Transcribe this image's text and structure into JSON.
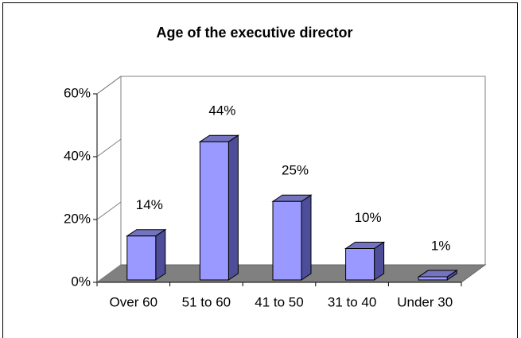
{
  "chart_data": {
    "type": "bar3d",
    "title": "Age of the executive director",
    "categories": [
      "Over 60",
      "51 to 60",
      "41 to 50",
      "31 to 40",
      "Under 30"
    ],
    "values": [
      14,
      44,
      25,
      10,
      1
    ],
    "value_labels": [
      "14%",
      "44%",
      "25%",
      "10%",
      "1%"
    ],
    "color": "#9999ff",
    "ylim": [
      0,
      60
    ],
    "yticks": [
      {
        "value": 0,
        "label": "0%"
      },
      {
        "value": 20,
        "label": "20%"
      },
      {
        "value": 40,
        "label": "40%"
      },
      {
        "value": 60,
        "label": "60%"
      }
    ]
  }
}
